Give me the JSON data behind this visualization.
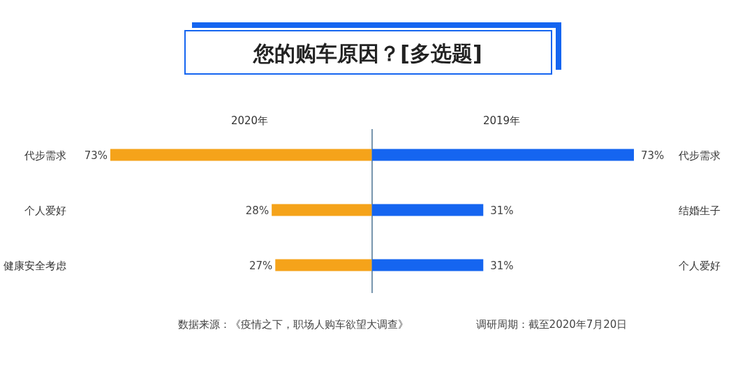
{
  "chart_data": [
    {
      "type": "bar",
      "orientation": "horizontal",
      "title": "您的购车原因？[多选题]",
      "subtitle": "2020年",
      "categories": [
        "代步需求",
        "个人爱好",
        "健康安全考虑"
      ],
      "values": [
        73,
        28,
        27
      ],
      "value_labels": [
        "73%",
        "28%",
        "27%"
      ],
      "color": "#f5a31a"
    },
    {
      "type": "bar",
      "orientation": "horizontal",
      "subtitle": "2019年",
      "categories": [
        "代步需求",
        "结婚生子",
        "个人爱好"
      ],
      "values": [
        73,
        31,
        31
      ],
      "value_labels": [
        "73%",
        "31%",
        "31%"
      ],
      "color": "#1565f0",
      "annotations": [
        "数据来源：《疫情之下，职场人购车欲望大调查》",
        "调研周期：截至2020年7月20日"
      ]
    }
  ]
}
